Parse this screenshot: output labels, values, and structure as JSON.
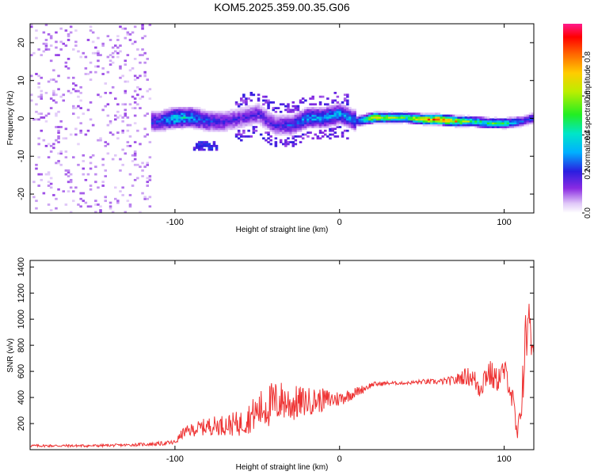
{
  "title": "KOM5.2025.359.00.35.G06",
  "spectrogram": {
    "xlabel": "Height of straight line (km)",
    "ylabel": "Frequency (Hz)",
    "xlim": [
      -188,
      118
    ],
    "ylim": [
      -25,
      25
    ],
    "xticks": [
      -100,
      0,
      100
    ],
    "yticks": [
      -20,
      -10,
      0,
      10,
      20
    ],
    "colorbar": {
      "label": "Normalized spectral amplitude",
      "range": [
        0,
        0.97
      ],
      "ticks": [
        0.0,
        0.2,
        0.4,
        0.6,
        0.8
      ],
      "tick_labels": [
        "0.0",
        "0.2",
        "0.4",
        "0.6",
        "0.8"
      ]
    }
  },
  "chart_data": [
    {
      "type": "heatmap",
      "xlabel": "Height of straight line (km)",
      "ylabel": "Frequency (Hz)",
      "xlim": [
        -188,
        118
      ],
      "ylim": [
        -25,
        25
      ],
      "colorbar_label": "Normalized spectral amplitude",
      "ridge": {
        "x": [
          -110,
          -100,
          -90,
          -80,
          -70,
          -60,
          -50,
          -40,
          -30,
          -20,
          -10,
          0,
          10,
          20,
          30,
          40,
          50,
          60,
          70,
          80,
          90,
          100,
          110,
          118
        ],
        "freq": [
          -1,
          0,
          0,
          -1,
          -1,
          0,
          1,
          -2,
          -2,
          0,
          0,
          1,
          -1,
          0,
          0,
          0,
          -0.5,
          -0.5,
          -1,
          -1,
          -1.5,
          -1.5,
          -1,
          0
        ],
        "amplitude": [
          0.25,
          0.45,
          0.35,
          0.25,
          0.2,
          0.2,
          0.2,
          0.2,
          0.25,
          0.35,
          0.35,
          0.35,
          0.3,
          0.75,
          0.6,
          0.55,
          0.8,
          0.95,
          0.75,
          0.5,
          0.5,
          0.5,
          0.25,
          0.3
        ]
      }
    },
    {
      "type": "line",
      "xlabel": "Height of straight line (km)",
      "ylabel": "SNR (v/v)",
      "xlim": [
        -188,
        118
      ],
      "ylim": [
        0,
        1450
      ],
      "xticks": [
        -100,
        0,
        100
      ],
      "yticks": [
        200,
        400,
        600,
        800,
        1000,
        1200,
        1400
      ],
      "color": "#ee3333",
      "x": [
        -188,
        -170,
        -150,
        -130,
        -110,
        -100,
        -95,
        -90,
        -80,
        -70,
        -60,
        -50,
        -45,
        -40,
        -35,
        -30,
        -20,
        -10,
        0,
        10,
        20,
        30,
        40,
        50,
        60,
        70,
        75,
        80,
        85,
        90,
        95,
        100,
        103,
        106,
        108,
        110,
        112,
        114,
        115,
        116,
        118
      ],
      "y": [
        30,
        30,
        30,
        35,
        45,
        55,
        130,
        150,
        180,
        190,
        200,
        290,
        330,
        350,
        380,
        350,
        370,
        380,
        390,
        440,
        500,
        510,
        510,
        520,
        520,
        530,
        560,
        560,
        480,
        600,
        530,
        600,
        520,
        300,
        80,
        300,
        680,
        900,
        1250,
        800,
        750
      ],
      "amplitude_of_noise": [
        10,
        10,
        10,
        10,
        15,
        20,
        40,
        50,
        70,
        80,
        100,
        140,
        170,
        180,
        150,
        150,
        110,
        90,
        60,
        40,
        20,
        15,
        10,
        20,
        20,
        40,
        60,
        80,
        100,
        120,
        100,
        100,
        100,
        120,
        60,
        150,
        250,
        300,
        200,
        150,
        10
      ]
    }
  ],
  "snr_panel": {
    "xlabel": "Height of straight line (km)",
    "ylabel": "SNR (v/v)"
  },
  "colors": {
    "snr_line": "#ee3333",
    "frame": "#000000"
  }
}
